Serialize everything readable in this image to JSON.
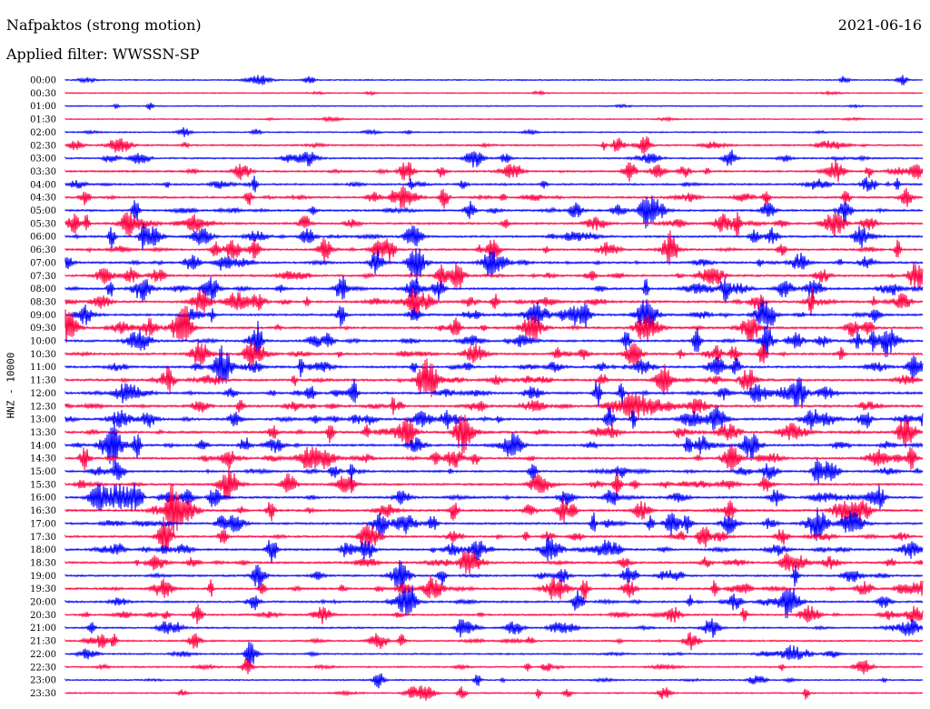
{
  "header": {
    "title": "Nafpaktos (strong motion)",
    "date": "2021-06-16",
    "filter": "Applied filter: WWSSN-SP"
  },
  "chart_data": {
    "type": "line",
    "title": "Nafpaktos (strong motion)",
    "subtitle": "Applied filter: WWSSN-SP",
    "date": "2021-06-16",
    "ylabel": "HNZ - 10000",
    "colors": [
      "#0000ff",
      "#ff0040"
    ],
    "row_labels": [
      "00:00",
      "00:30",
      "01:00",
      "01:30",
      "02:00",
      "02:30",
      "03:00",
      "03:30",
      "04:00",
      "04:30",
      "05:00",
      "05:30",
      "06:00",
      "06:30",
      "07:00",
      "07:30",
      "08:00",
      "08:30",
      "09:00",
      "09:30",
      "10:00",
      "10:30",
      "11:00",
      "11:30",
      "12:00",
      "12:30",
      "13:00",
      "13:30",
      "14:00",
      "14:30",
      "15:00",
      "15:30",
      "16:00",
      "16:30",
      "17:00",
      "17:30",
      "18:00",
      "18:30",
      "19:00",
      "19:30",
      "20:00",
      "20:30",
      "21:00",
      "21:30",
      "22:00",
      "22:30",
      "23:00",
      "23:30"
    ],
    "activity": [
      0.15,
      0.12,
      0.12,
      0.12,
      0.22,
      0.45,
      0.4,
      0.55,
      0.6,
      0.65,
      0.7,
      0.72,
      0.68,
      0.7,
      0.75,
      0.75,
      0.78,
      0.8,
      0.78,
      0.8,
      0.75,
      0.78,
      0.82,
      0.85,
      0.85,
      0.85,
      0.85,
      0.85,
      0.75,
      0.72,
      0.7,
      0.72,
      0.75,
      0.8,
      0.72,
      0.7,
      0.72,
      0.72,
      0.65,
      0.65,
      0.62,
      0.55,
      0.5,
      0.45,
      0.38,
      0.35,
      0.3,
      0.25
    ],
    "grid": false,
    "legend": "none"
  }
}
